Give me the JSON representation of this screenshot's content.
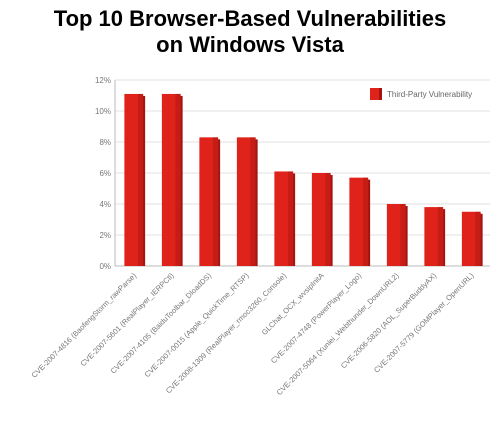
{
  "chart_data": {
    "type": "bar",
    "title_line1": "Top 10 Browser-Based Vulnerabilities",
    "title_line2": "on Windows Vista",
    "categories": [
      "CVE-2007-4816 (BaofengStorm_rawParse)",
      "CVE-2007-5601 (RealPlayer_IERPCtl)",
      "CVE-2007-4105 (BaiduToolbar_DloadDS)",
      "CVE-2007-0015 (Apple_QuickTime_RTSP)",
      "CVE-2008-1309 (RealPlayer_rmoc3260_Console)",
      "GLChat_OCX_wvsipInitA",
      "CVE-2007-4748 (PowerPlayer_Logo)",
      "CVE-2007-5064 (Xunlei_Webthunder_DownURL2)",
      "CVE-2006-5820 (AOL_SuperBuddyAX)",
      "CVE-2007-5779 (GOMPlayer_OpenURL)"
    ],
    "series": [
      {
        "name": "Third-Party Vulnerability",
        "values": [
          11.1,
          11.1,
          8.3,
          8.3,
          6.1,
          6.0,
          5.7,
          4.0,
          3.8,
          3.5
        ]
      }
    ],
    "y_ticks": [
      "0%",
      "2%",
      "4%",
      "6%",
      "8%",
      "10%",
      "12%"
    ],
    "ylim": [
      0,
      12
    ],
    "legend_position": "top-right",
    "grid": true,
    "bar_color": "#e0231a",
    "bar_shade_color": "#a51410"
  }
}
